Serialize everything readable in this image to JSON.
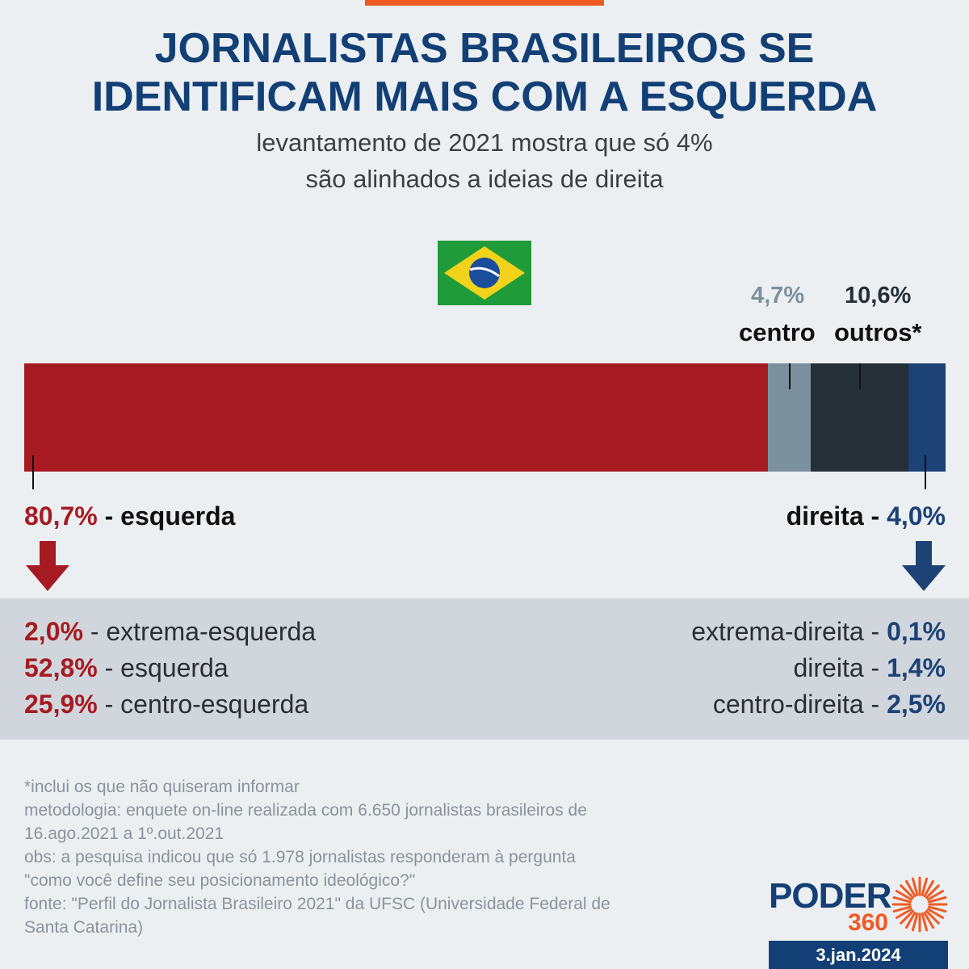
{
  "colors": {
    "accent_orange": "#f05a22",
    "title_blue": "#123f75",
    "left_red": "#a51b21",
    "center_gray": "#7a909c",
    "others_dark": "#252f38",
    "right_blue": "#1c4276",
    "date_bg": "#123f75"
  },
  "header": {
    "title_line1": "JORNALISTAS BRASILEIROS SE",
    "title_line2": "IDENTIFICAM MAIS COM A ESQUERDA",
    "subtitle_line1": "levantamento de 2021 mostra que só 4%",
    "subtitle_line2": "são alinhados a ideias de direita"
  },
  "flag_icon": "brazil-flag-icon",
  "chart_data": {
    "type": "bar",
    "orientation": "horizontal-stacked",
    "categories": [
      "esquerda",
      "centro",
      "outros*",
      "direita"
    ],
    "values": [
      80.7,
      4.7,
      10.6,
      4.0
    ],
    "value_labels": [
      "80,7%",
      "4,7%",
      "10,6%",
      "4,0%"
    ],
    "unit": "%",
    "breakdown_left": [
      {
        "value": 2.0,
        "label": "2,0%",
        "name": "extrema-esquerda"
      },
      {
        "value": 52.8,
        "label": "52,8%",
        "name": "esquerda"
      },
      {
        "value": 25.9,
        "label": "25,9%",
        "name": "centro-esquerda"
      }
    ],
    "breakdown_right": [
      {
        "value": 0.1,
        "label": "0,1%",
        "name": "extrema-direita"
      },
      {
        "value": 1.4,
        "label": "1,4%",
        "name": "direita"
      },
      {
        "value": 2.5,
        "label": "2,5%",
        "name": "centro-direita"
      }
    ]
  },
  "labels": {
    "separator": " - ",
    "centro_pct": "4,7%",
    "centro_name": "centro",
    "outros_pct": "10,6%",
    "outros_name": "outros*",
    "esquerda_pct": "80,7%",
    "esquerda_name": "esquerda",
    "direita_pct": "4,0%",
    "direita_name": "direita"
  },
  "notes": [
    "*inclui os que não quiseram informar",
    "metodologia: enquete on-line realizada com 6.650 jornalistas brasileiros de",
    "16.ago.2021 a 1º.out.2021",
    "obs: a pesquisa indicou que só 1.978 jornalistas responderam à pergunta",
    "\"como você define seu posicionamento ideológico?\"",
    "fonte: \"Perfil do Jornalista Brasileiro 2021\" da UFSC (Universidade Federal de",
    "Santa Catarina)"
  ],
  "logo": {
    "name": "PODER",
    "number": "360"
  },
  "date": "3.jan.2024"
}
